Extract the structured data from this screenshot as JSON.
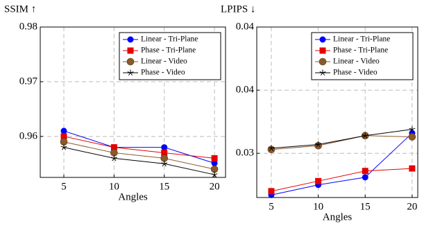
{
  "chart_data": [
    {
      "type": "line",
      "title": "SSIM ↑",
      "xlabel": "Angles",
      "x": [
        5,
        10,
        15,
        20
      ],
      "xlim": [
        2.65,
        21.1
      ],
      "xticks": [
        5,
        10,
        15,
        20
      ],
      "ylim": [
        0.9525,
        0.98
      ],
      "yticks": [
        0.96,
        0.97,
        0.98
      ],
      "grid": true,
      "legend": "top-right",
      "series": [
        {
          "name": "Linear - Tri-Plane",
          "color": "#0000ff",
          "marker": "circle",
          "values": [
            0.961,
            0.958,
            0.958,
            0.9551
          ]
        },
        {
          "name": "Phase - Tri-Plane",
          "color": "#e60000",
          "marker": "square",
          "values": [
            0.96,
            0.958,
            0.957,
            0.956
          ]
        },
        {
          "name": "Linear - Video",
          "color": "#8b5a2b",
          "marker": "bigcircle",
          "values": [
            0.959,
            0.957,
            0.956,
            0.954
          ]
        },
        {
          "name": "Phase - Video",
          "color": "#000000",
          "marker": "star",
          "values": [
            0.958,
            0.956,
            0.955,
            0.953
          ]
        }
      ]
    },
    {
      "type": "line",
      "title": "LPIPS ↓",
      "xlabel": "Angles",
      "x": [
        5,
        10,
        15,
        20
      ],
      "xlim": [
        3.45,
        20.6
      ],
      "xticks": [
        5,
        10,
        15,
        20
      ],
      "ylim": [
        0.0265,
        0.04
      ],
      "yticks": [
        0.03,
        {
          "value": 0.035,
          "label": "0.04"
        },
        0.04
      ],
      "grid": true,
      "legend": "top-right",
      "series": [
        {
          "name": "Linear - Tri-Plane",
          "color": "#0000ff",
          "marker": "circle",
          "values": [
            0.0267,
            0.0275,
            0.0281,
            0.0316
          ]
        },
        {
          "name": "Phase - Tri-Plane",
          "color": "#e60000",
          "marker": "square",
          "values": [
            0.027,
            0.0278,
            0.0286,
            0.0288
          ]
        },
        {
          "name": "Linear - Video",
          "color": "#8b5a2b",
          "marker": "bigcircle",
          "values": [
            0.0303,
            0.0306,
            0.0314,
            0.0313
          ]
        },
        {
          "name": "Phase - Video",
          "color": "#000000",
          "marker": "star",
          "values": [
            0.0304,
            0.0307,
            0.0314,
            0.0319
          ]
        }
      ]
    }
  ]
}
